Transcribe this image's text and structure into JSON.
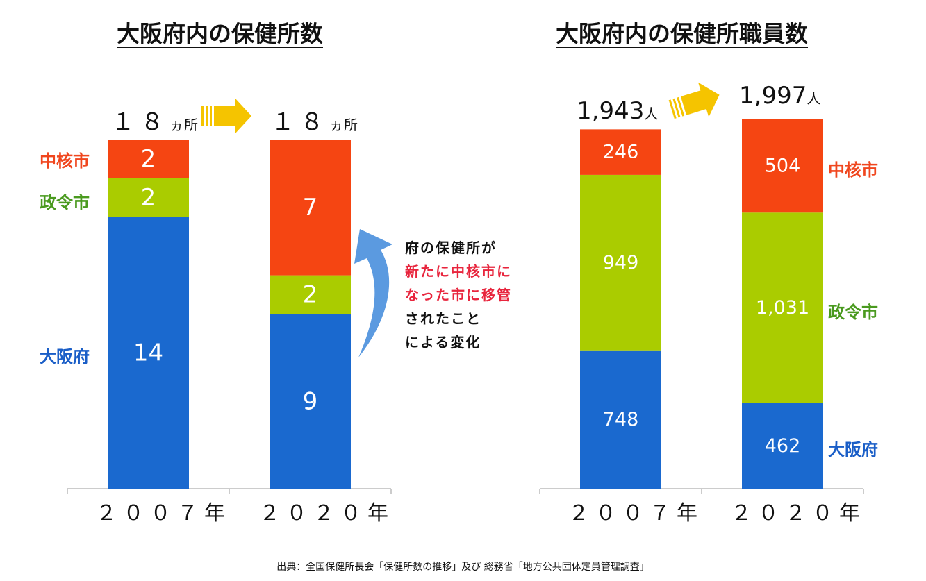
{
  "chart_data": [
    {
      "type": "bar",
      "stacked": true,
      "title": "大阪府内の保健所数",
      "categories": [
        "２００７年",
        "２０２０年"
      ],
      "totals": [
        "１８",
        "１８"
      ],
      "total_unit": "ヵ所",
      "series": [
        {
          "name": "大阪府",
          "color": "#1a69cf",
          "values": [
            14,
            9
          ]
        },
        {
          "name": "政令市",
          "color": "#aacc00",
          "values": [
            2,
            2
          ]
        },
        {
          "name": "中核市",
          "color": "#f54512",
          "values": [
            2,
            7
          ]
        }
      ],
      "ylim": [
        0,
        18
      ],
      "grid": false
    },
    {
      "type": "bar",
      "stacked": true,
      "title": "大阪府内の保健所職員数",
      "categories": [
        "２００７年",
        "２０２０年"
      ],
      "totals": [
        "1,943",
        "1,997"
      ],
      "total_unit": "人",
      "series": [
        {
          "name": "大阪府",
          "color": "#1a69cf",
          "values": [
            748,
            462
          ],
          "labels": [
            "748",
            "462"
          ]
        },
        {
          "name": "政令市",
          "color": "#aacc00",
          "values": [
            949,
            1031
          ],
          "labels": [
            "949",
            "1,031"
          ]
        },
        {
          "name": "中核市",
          "color": "#f54512",
          "values": [
            246,
            504
          ],
          "labels": [
            "246",
            "504"
          ]
        }
      ],
      "ylim": [
        0,
        1997
      ],
      "grid": false
    }
  ],
  "legend_left": {
    "red": "中核市",
    "green": "政令市",
    "blue": "大阪府"
  },
  "legend_right": {
    "red": "中核市",
    "green": "政令市",
    "blue": "大阪府"
  },
  "note": {
    "line1": "府の保健所が",
    "line2": "新たに中核市に",
    "line3": "なった市に移管",
    "line4": "されたこと",
    "line5": "による変化"
  },
  "source": "出典：全国保健所長会「保健所数の推移」及び 総務省「地方公共団体定員管理調査」",
  "colors": {
    "arrow_yellow": "#f5c400",
    "arrow_blue": "#5b9ae0",
    "note_red": "#e8253d"
  }
}
